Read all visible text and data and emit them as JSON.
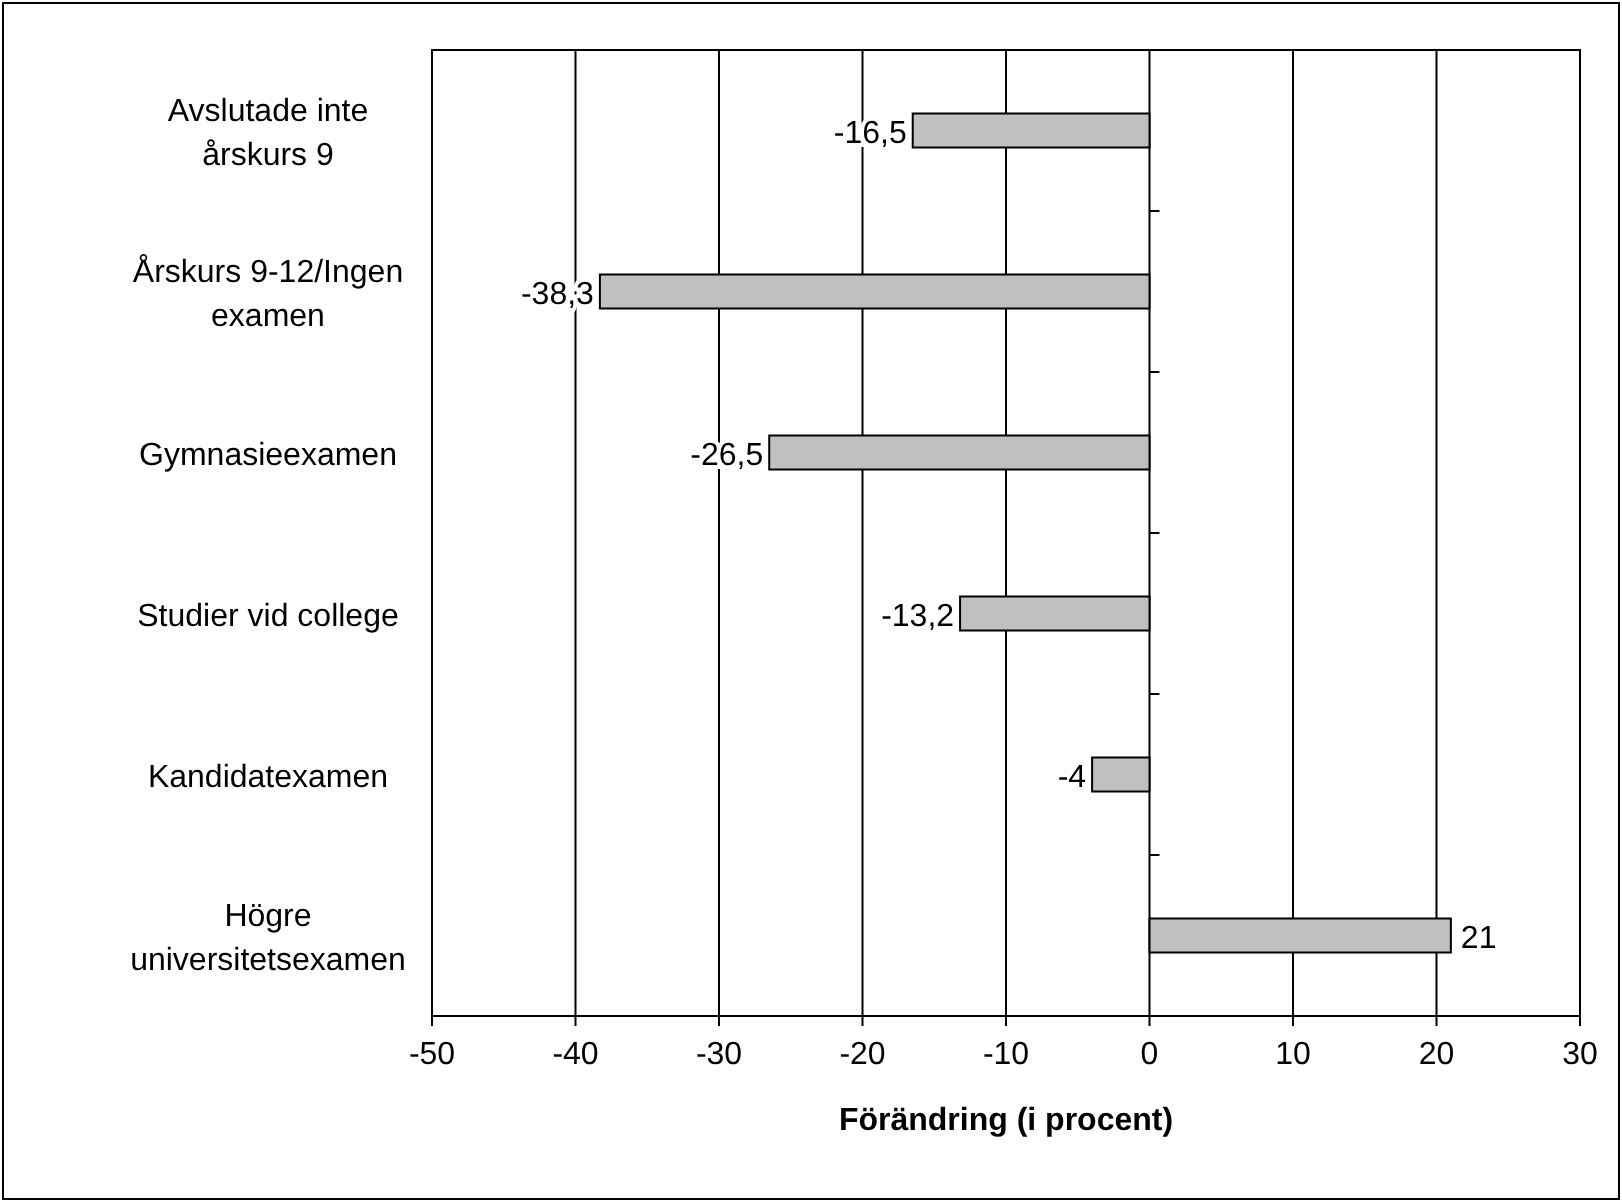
{
  "chart_data": {
    "type": "bar",
    "orientation": "horizontal",
    "xlabel": "Förändring (i procent)",
    "categories": [
      "Avslutade inte årskurs 9",
      "Årskurs 9-12/Ingen examen",
      "Gymnasieexamen",
      "Studier vid college",
      "Kandidatexamen",
      "Högre universitetsexamen"
    ],
    "values": [
      -16.5,
      -38.3,
      -26.5,
      -13.2,
      -4,
      21
    ],
    "value_labels": [
      "-16,5",
      "-38,3",
      "-26,5",
      "-13,2",
      "-4",
      "21"
    ],
    "color": "#c0c0c0",
    "xlim": [
      -50,
      30
    ],
    "xticks": [
      -50,
      -40,
      -30,
      -20,
      -10,
      0,
      10,
      20,
      30
    ],
    "grid": "x"
  }
}
